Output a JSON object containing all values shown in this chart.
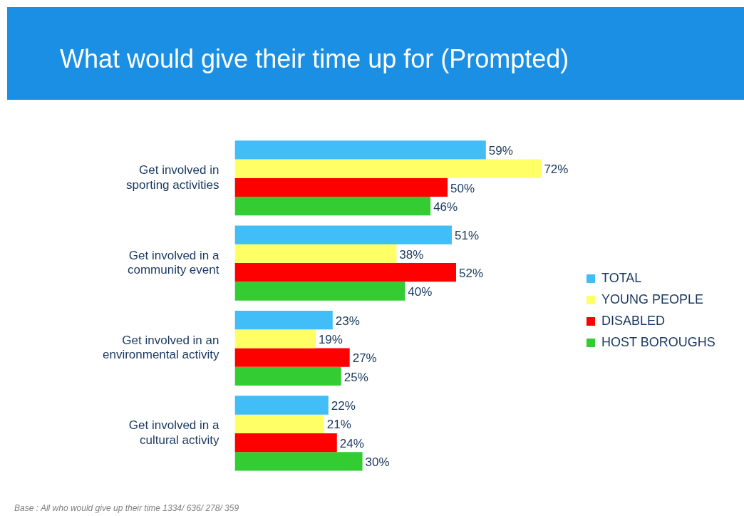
{
  "chart_data": {
    "type": "bar",
    "orientation": "horizontal",
    "title": "What would give their time up for (Prompted)",
    "categories": [
      "Get involved in sporting activities",
      "Get involved in a community event",
      "Get involved in an environmental activity",
      "Get involved in a cultural activity"
    ],
    "series": [
      {
        "name": "TOTAL",
        "color": "#41bdf8",
        "values": [
          59,
          51,
          23,
          22
        ],
        "value_labels": [
          "59%",
          "51%",
          "23%",
          "22%"
        ]
      },
      {
        "name": "YOUNG PEOPLE",
        "color": "#ffff66",
        "values": [
          72,
          38,
          19,
          21
        ],
        "value_labels": [
          "72%",
          "38%",
          "19%",
          "21%"
        ]
      },
      {
        "name": "DISABLED",
        "color": "#ff0000",
        "values": [
          50,
          52,
          27,
          24
        ],
        "value_labels": [
          "50%",
          "52%",
          "27%",
          "24%"
        ]
      },
      {
        "name": "HOST BOROUGHS",
        "color": "#33cc33",
        "values": [
          46,
          40,
          25,
          30
        ],
        "value_labels": [
          "46%",
          "40%",
          "25%",
          "30%"
        ]
      }
    ],
    "grid": false,
    "legend": "right",
    "annotations": [
      "Base : All who would give up their time 1334/ 636/ 278/ 359"
    ]
  }
}
